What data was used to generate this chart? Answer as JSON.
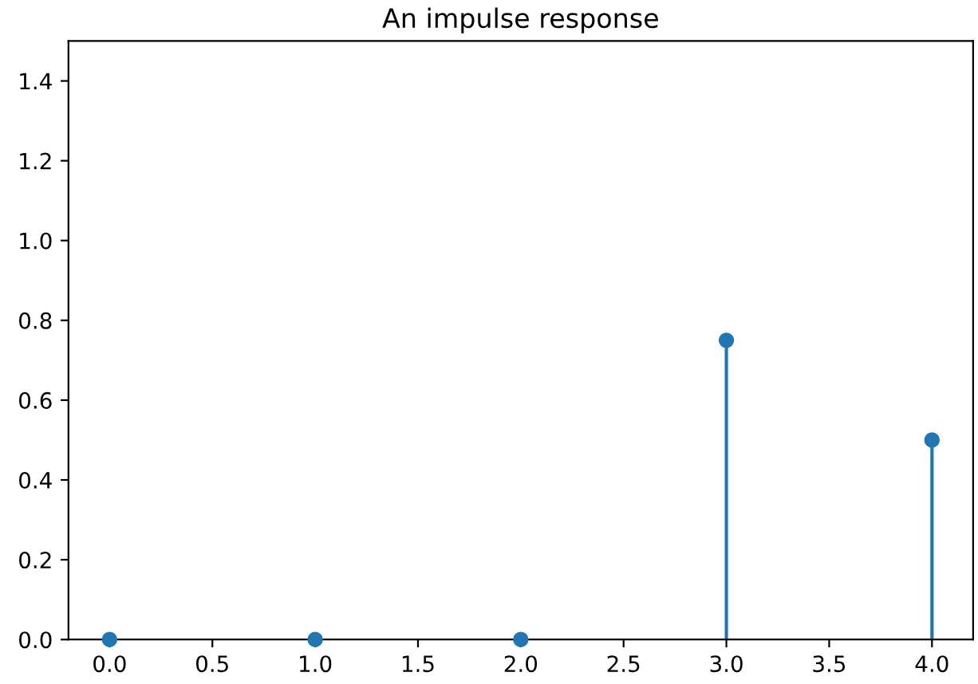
{
  "chart_data": {
    "type": "lollipop",
    "title": "An impulse response",
    "x": [
      0,
      1,
      2,
      3,
      4
    ],
    "series": [
      {
        "color": "#1f77b4",
        "values": [
          0,
          0,
          0,
          0.75,
          0.5
        ]
      }
    ],
    "xlim": [
      -0.2,
      4.2
    ],
    "xticks": [
      {
        "value": 0,
        "label": "0.0"
      },
      0.5,
      {
        "value": 1,
        "label": "1.0"
      },
      1.5,
      {
        "value": 2,
        "label": "2.0"
      },
      2.5,
      {
        "value": 3,
        "label": "3.0"
      },
      3.5,
      {
        "value": 4,
        "label": "4.0"
      }
    ],
    "ylim": [
      0,
      1.5
    ],
    "yticks": [
      {
        "value": 0,
        "label": "0.0"
      },
      0.2,
      0.4,
      0.6,
      0.8,
      {
        "value": 1,
        "label": "1.0"
      },
      1.2,
      1.4
    ],
    "marker": "circle",
    "grid": false
  }
}
